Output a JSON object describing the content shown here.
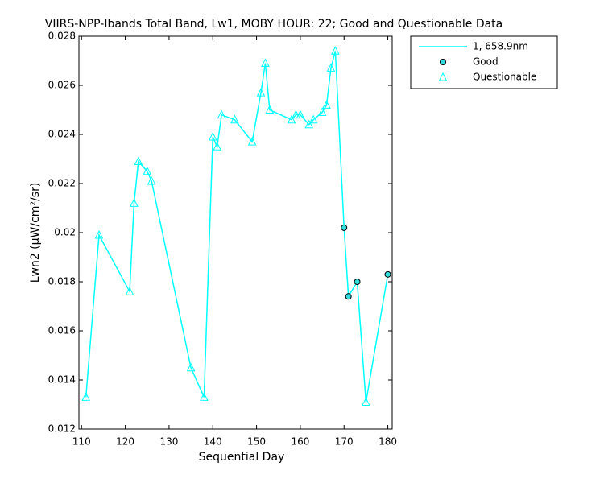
{
  "chart_data": {
    "type": "line",
    "title": "VIIRS-NPP-Ibands Total Band, Lw1, MOBY HOUR: 22;  Good and Questionable Data",
    "x_label": "Sequential Day",
    "y_label": "Lwn2 (µW/cm²/sr)",
    "xlim": [
      109.4,
      181
    ],
    "xticks": [
      110,
      120,
      130,
      140,
      150,
      160,
      170,
      180
    ],
    "ylim": [
      0.012,
      0.028
    ],
    "yticks": [
      0.012,
      0.014,
      0.016,
      0.018,
      0.02,
      0.022,
      0.024,
      0.026,
      0.028
    ],
    "legend": "outside-top-right",
    "series": [
      {
        "name": "1, 658.9nm",
        "color": "#00ffff",
        "marker": "none",
        "x": [
          111,
          114,
          121,
          122,
          123,
          125,
          126,
          135,
          138,
          140,
          141,
          142,
          145,
          149,
          151,
          152,
          153,
          158,
          159,
          160,
          162,
          163,
          165,
          166,
          167,
          168,
          170,
          171,
          173,
          175,
          180
        ],
        "values": [
          0.0133,
          0.0199,
          0.0176,
          0.0212,
          0.0229,
          0.0225,
          0.0221,
          0.0145,
          0.0133,
          0.0239,
          0.0235,
          0.0248,
          0.0246,
          0.0237,
          0.0257,
          0.0269,
          0.025,
          0.0246,
          0.0248,
          0.0248,
          0.0244,
          0.0246,
          0.0249,
          0.0252,
          0.0267,
          0.0274,
          0.0202,
          0.0174,
          0.018,
          0.0131,
          0.0183
        ]
      },
      {
        "name": "Good",
        "color": "#33dddd",
        "marker": "circle",
        "x": [
          170,
          171,
          173,
          180
        ],
        "values": [
          0.0202,
          0.0174,
          0.018,
          0.0183
        ]
      },
      {
        "name": "Questionable",
        "color": "#00ffff",
        "marker": "triangle",
        "x": [
          111,
          114,
          121,
          122,
          123,
          125,
          126,
          135,
          138,
          140,
          141,
          142,
          145,
          149,
          151,
          152,
          153,
          158,
          159,
          160,
          162,
          163,
          165,
          166,
          167,
          168,
          175
        ],
        "values": [
          0.0133,
          0.0199,
          0.0176,
          0.0212,
          0.0229,
          0.0225,
          0.0221,
          0.0145,
          0.0133,
          0.0239,
          0.0235,
          0.0248,
          0.0246,
          0.0237,
          0.0257,
          0.0269,
          0.025,
          0.0246,
          0.0248,
          0.0248,
          0.0244,
          0.0246,
          0.0249,
          0.0252,
          0.0267,
          0.0274,
          0.0131
        ]
      }
    ]
  }
}
